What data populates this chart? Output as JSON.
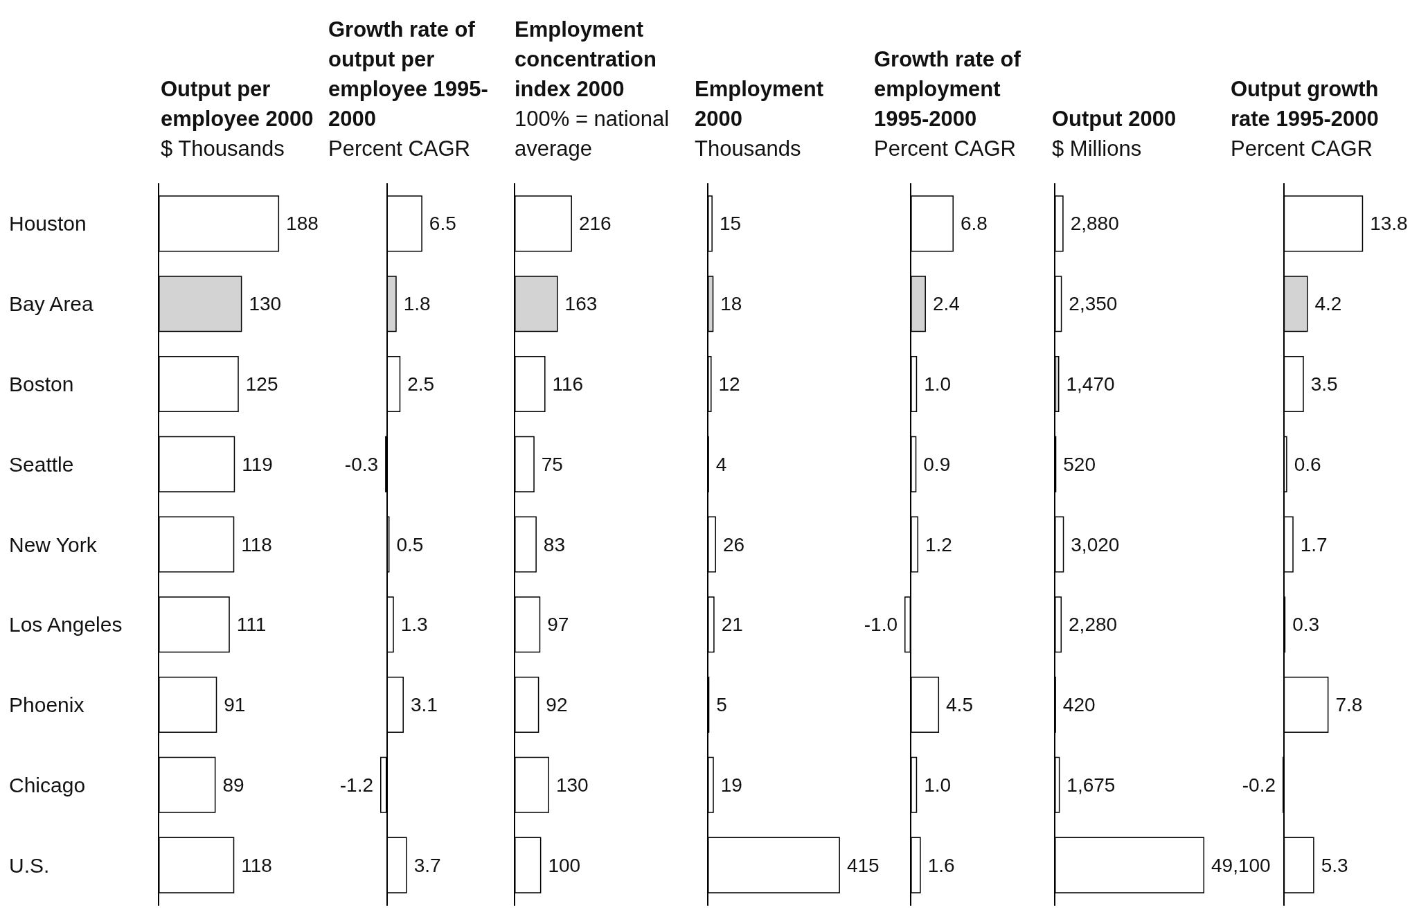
{
  "chart_data": [
    {
      "type": "bar",
      "orientation": "horizontal",
      "title": "Output per employee 2000",
      "subtitle": "$ Thousands",
      "tick_labels": "y",
      "categories": [
        "Houston",
        "Bay Area",
        "Boston",
        "Seattle",
        "New York",
        "Los Angeles",
        "Phoenix",
        "Chicago",
        "U.S."
      ],
      "values": [
        188,
        130,
        125,
        119,
        118,
        111,
        91,
        89,
        118
      ],
      "value_labels": [
        "188",
        "130",
        "125",
        "119",
        "118",
        "111",
        "91",
        "89",
        "118"
      ],
      "colors": [
        "#ffffff",
        "#d3d3d3",
        "#ffffff",
        "#ffffff",
        "#ffffff",
        "#ffffff",
        "#ffffff",
        "#ffffff",
        "#ffffff"
      ]
    },
    {
      "type": "bar",
      "orientation": "horizontal",
      "title": "Growth rate of output per employee 1995-2000",
      "subtitle": "Percent CAGR",
      "tick_labels": false,
      "categories": [
        null,
        null,
        null,
        null,
        null,
        null,
        null,
        null,
        null
      ],
      "values": [
        6.5,
        1.8,
        2.5,
        -0.3,
        0.5,
        1.3,
        3.1,
        -1.2,
        3.7
      ],
      "value_labels": [
        "6.5",
        "1.8",
        "2.5",
        "-0.3",
        "0.5",
        "1.3",
        "3.1",
        "-1.2",
        "3.7"
      ],
      "colors": [
        "#ffffff",
        "#d3d3d3",
        "#ffffff",
        "#ffffff",
        "#ffffff",
        "#ffffff",
        "#ffffff",
        "#ffffff",
        "#ffffff"
      ]
    },
    {
      "type": "bar",
      "orientation": "horizontal",
      "title": "Employment concentration index 2000",
      "subtitle": "100% = national average",
      "tick_labels": false,
      "categories": [
        null,
        null,
        null,
        null,
        null,
        null,
        null,
        null,
        null
      ],
      "values": [
        216,
        163,
        116,
        75,
        83,
        97,
        92,
        130,
        100
      ],
      "value_labels": [
        "216",
        "163",
        "116",
        "75",
        "83",
        "97",
        "92",
        "130",
        "100"
      ],
      "colors": [
        "#ffffff",
        "#d3d3d3",
        "#ffffff",
        "#ffffff",
        "#ffffff",
        "#ffffff",
        "#ffffff",
        "#ffffff",
        "#ffffff"
      ]
    },
    {
      "type": "bar",
      "orientation": "horizontal",
      "title": "Employment 2000",
      "subtitle": "Thousands",
      "tick_labels": false,
      "categories": [
        null,
        null,
        null,
        null,
        null,
        null,
        null,
        null,
        null
      ],
      "values": [
        15,
        18,
        12,
        4,
        26,
        21,
        5,
        19,
        415
      ],
      "value_labels": [
        "15",
        "18",
        "12",
        "4",
        "26",
        "21",
        "5",
        "19",
        "415"
      ],
      "colors": [
        "#ffffff",
        "#d3d3d3",
        "#ffffff",
        "#ffffff",
        "#ffffff",
        "#ffffff",
        "#ffffff",
        "#ffffff",
        "#ffffff"
      ]
    },
    {
      "type": "bar",
      "orientation": "horizontal",
      "title": "Growth rate of employment 1995-2000",
      "subtitle": "Percent CAGR",
      "tick_labels": false,
      "categories": [
        null,
        null,
        null,
        null,
        null,
        null,
        null,
        null,
        null
      ],
      "values": [
        6.8,
        2.4,
        1.0,
        0.9,
        1.2,
        -1.0,
        4.5,
        1.0,
        1.6
      ],
      "value_labels": [
        "6.8",
        "2.4",
        "1.0",
        "0.9",
        "1.2",
        "-1.0",
        "4.5",
        "1.0",
        "1.6"
      ],
      "colors": [
        "#ffffff",
        "#d3d3d3",
        "#ffffff",
        "#ffffff",
        "#ffffff",
        "#ffffff",
        "#ffffff",
        "#ffffff",
        "#ffffff"
      ]
    },
    {
      "type": "bar",
      "orientation": "horizontal",
      "title": "Output 2000",
      "subtitle": "$ Millions",
      "tick_labels": false,
      "categories": [
        null,
        null,
        null,
        null,
        null,
        null,
        null,
        null,
        null
      ],
      "values": [
        2880,
        2350,
        1470,
        520,
        3020,
        2280,
        420,
        1675,
        49100
      ],
      "value_labels": [
        "2,880",
        "2,350",
        "1,470",
        "520",
        "3,020",
        "2,280",
        "420",
        "1,675",
        "49,100"
      ],
      "colors": [
        "#ffffff",
        "#ffffff",
        "#d3d3d3",
        "#ffffff",
        "#ffffff",
        "#ffffff",
        "#ffffff",
        "#ffffff",
        "#ffffff"
      ]
    },
    {
      "type": "bar",
      "orientation": "horizontal",
      "title": "Output growth rate 1995-2000",
      "subtitle": "Percent CAGR",
      "tick_labels": false,
      "categories": [
        null,
        null,
        null,
        null,
        null,
        null,
        null,
        null,
        null
      ],
      "values": [
        13.8,
        4.2,
        3.5,
        0.6,
        1.7,
        0.3,
        7.8,
        -0.2,
        5.3
      ],
      "value_labels": [
        "13.8",
        "4.2",
        "3.5",
        "0.6",
        "1.7",
        "0.3",
        "7.8",
        "-0.2",
        "5.3"
      ],
      "colors": [
        "#ffffff",
        "#d3d3d3",
        "#ffffff",
        "#ffffff",
        "#ffffff",
        "#ffffff",
        "#ffffff",
        "#ffffff",
        "#ffffff"
      ]
    }
  ]
}
